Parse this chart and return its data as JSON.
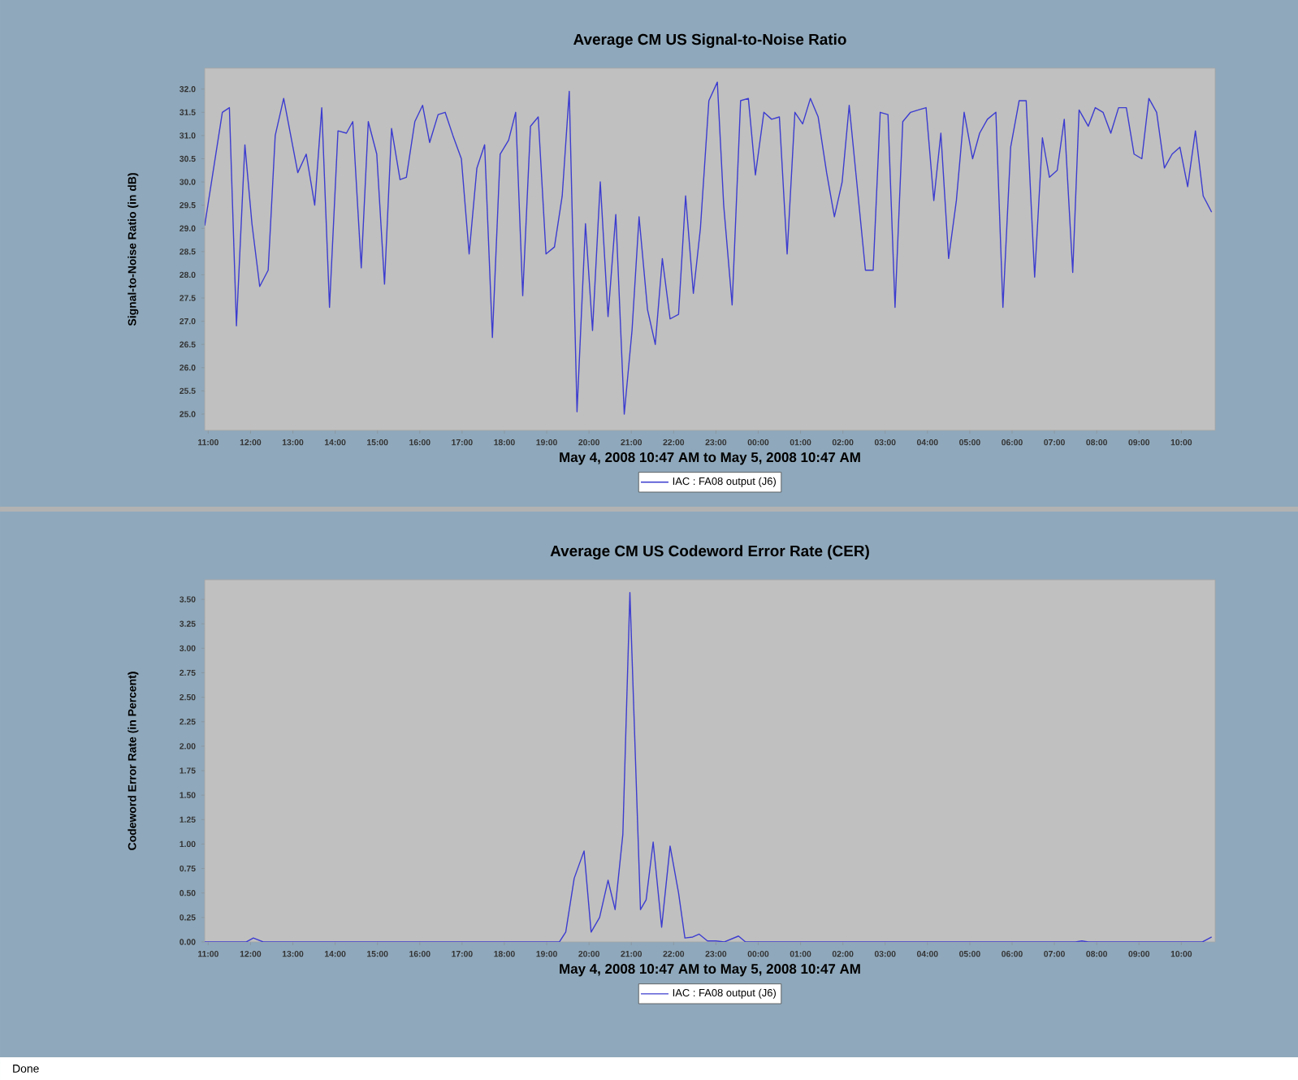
{
  "chart_data": [
    {
      "type": "line",
      "title": "Average CM US Signal-to-Noise Ratio",
      "xlabel": "May 4, 2008 10:47 AM to May 5, 2008 10:47 AM",
      "ylabel": "Signal-to-Noise Ratio (in dB)",
      "legend": "bottom",
      "line_style": "solid",
      "xlim": [
        "2008-05-04T10:55",
        "2008-05-05T10:48"
      ],
      "ylim": [
        24.65,
        32.45
      ],
      "xticks": [
        {
          "value": "2008-05-04T11:00",
          "label": "11:00"
        },
        {
          "value": "2008-05-04T12:00",
          "label": "12:00"
        },
        {
          "value": "2008-05-04T13:00",
          "label": "13:00"
        },
        {
          "value": "2008-05-04T14:00",
          "label": "14:00"
        },
        {
          "value": "2008-05-04T15:00",
          "label": "15:00"
        },
        {
          "value": "2008-05-04T16:00",
          "label": "16:00"
        },
        {
          "value": "2008-05-04T17:00",
          "label": "17:00"
        },
        {
          "value": "2008-05-04T18:00",
          "label": "18:00"
        },
        {
          "value": "2008-05-04T19:00",
          "label": "19:00"
        },
        {
          "value": "2008-05-04T20:00",
          "label": "20:00"
        },
        {
          "value": "2008-05-04T21:00",
          "label": "21:00"
        },
        {
          "value": "2008-05-04T22:00",
          "label": "22:00"
        },
        {
          "value": "2008-05-04T23:00",
          "label": "23:00"
        },
        {
          "value": "2008-05-05T00:00",
          "label": "00:00"
        },
        {
          "value": "2008-05-05T01:00",
          "label": "01:00"
        },
        {
          "value": "2008-05-05T02:00",
          "label": "02:00"
        },
        {
          "value": "2008-05-05T03:00",
          "label": "03:00"
        },
        {
          "value": "2008-05-05T04:00",
          "label": "04:00"
        },
        {
          "value": "2008-05-05T05:00",
          "label": "05:00"
        },
        {
          "value": "2008-05-05T06:00",
          "label": "06:00"
        },
        {
          "value": "2008-05-05T07:00",
          "label": "07:00"
        },
        {
          "value": "2008-05-05T08:00",
          "label": "08:00"
        },
        {
          "value": "2008-05-05T09:00",
          "label": "09:00"
        },
        {
          "value": "2008-05-05T10:00",
          "label": "10:00"
        }
      ],
      "yticks": [
        {
          "value": 25,
          "label": "25.0"
        },
        {
          "value": 25.5,
          "label": "25.5"
        },
        {
          "value": 26,
          "label": "26.0"
        },
        {
          "value": 26.5,
          "label": "26.5"
        },
        {
          "value": 27,
          "label": "27.0"
        },
        {
          "value": 27.5,
          "label": "27.5"
        },
        {
          "value": 28,
          "label": "28.0"
        },
        {
          "value": 28.5,
          "label": "28.5"
        },
        {
          "value": 29,
          "label": "29.0"
        },
        {
          "value": 29.5,
          "label": "29.5"
        },
        {
          "value": 30,
          "label": "30.0"
        },
        {
          "value": 30.5,
          "label": "30.5"
        },
        {
          "value": 31,
          "label": "31.0"
        },
        {
          "value": 31.5,
          "label": "31.5"
        },
        {
          "value": 32,
          "label": "32.0"
        }
      ],
      "series": [
        {
          "name": "IAC : FA08 output (J6)",
          "color": "#3c3cd0",
          "x": [
            "2008-05-04T10:55",
            "2008-05-04T11:20",
            "2008-05-04T11:30",
            "2008-05-04T11:40",
            "2008-05-04T11:52",
            "2008-05-04T12:02",
            "2008-05-04T12:13",
            "2008-05-04T12:25",
            "2008-05-04T12:35",
            "2008-05-04T12:47",
            "2008-05-04T12:57",
            "2008-05-04T13:07",
            "2008-05-04T13:19",
            "2008-05-04T13:31",
            "2008-05-04T13:41",
            "2008-05-04T13:52",
            "2008-05-04T14:04",
            "2008-05-04T14:16",
            "2008-05-04T14:25",
            "2008-05-04T14:37",
            "2008-05-04T14:47",
            "2008-05-04T14:59",
            "2008-05-04T15:10",
            "2008-05-04T15:20",
            "2008-05-04T15:32",
            "2008-05-04T15:41",
            "2008-05-04T15:53",
            "2008-05-04T16:04",
            "2008-05-04T16:14",
            "2008-05-04T16:26",
            "2008-05-04T16:36",
            "2008-05-04T16:47",
            "2008-05-04T16:59",
            "2008-05-04T17:10",
            "2008-05-04T17:21",
            "2008-05-04T17:32",
            "2008-05-04T17:43",
            "2008-05-04T17:54",
            "2008-05-04T18:06",
            "2008-05-04T18:16",
            "2008-05-04T18:26",
            "2008-05-04T18:37",
            "2008-05-04T18:48",
            "2008-05-04T18:59",
            "2008-05-04T19:11",
            "2008-05-04T19:22",
            "2008-05-04T19:32",
            "2008-05-04T19:43",
            "2008-05-04T19:55",
            "2008-05-04T20:05",
            "2008-05-04T20:16",
            "2008-05-04T20:27",
            "2008-05-04T20:38",
            "2008-05-04T20:50",
            "2008-05-04T21:01",
            "2008-05-04T21:11",
            "2008-05-04T21:23",
            "2008-05-04T21:34",
            "2008-05-04T21:44",
            "2008-05-04T21:55",
            "2008-05-04T22:07",
            "2008-05-04T22:17",
            "2008-05-04T22:28",
            "2008-05-04T22:38",
            "2008-05-04T22:50",
            "2008-05-04T23:02",
            "2008-05-04T23:11",
            "2008-05-04T23:23",
            "2008-05-04T23:35",
            "2008-05-04T23:46",
            "2008-05-04T23:56",
            "2008-05-05T00:08",
            "2008-05-05T00:19",
            "2008-05-05T00:30",
            "2008-05-05T00:41",
            "2008-05-05T00:52",
            "2008-05-05T01:03",
            "2008-05-05T01:14",
            "2008-05-05T01:25",
            "2008-05-05T01:37",
            "2008-05-05T01:48",
            "2008-05-05T01:59",
            "2008-05-05T02:09",
            "2008-05-05T02:21",
            "2008-05-05T02:32",
            "2008-05-05T02:43",
            "2008-05-05T02:53",
            "2008-05-05T03:04",
            "2008-05-05T03:14",
            "2008-05-05T03:25",
            "2008-05-05T03:36",
            "2008-05-05T03:47",
            "2008-05-05T03:58",
            "2008-05-05T04:09",
            "2008-05-05T04:19",
            "2008-05-05T04:30",
            "2008-05-05T04:41",
            "2008-05-05T04:52",
            "2008-05-05T05:04",
            "2008-05-05T05:14",
            "2008-05-05T05:25",
            "2008-05-05T05:37",
            "2008-05-05T05:47",
            "2008-05-05T05:58",
            "2008-05-05T06:10",
            "2008-05-05T06:20",
            "2008-05-05T06:32",
            "2008-05-05T06:43",
            "2008-05-05T06:53",
            "2008-05-05T07:04",
            "2008-05-05T07:14",
            "2008-05-05T07:26",
            "2008-05-05T07:35",
            "2008-05-05T07:48",
            "2008-05-05T07:58",
            "2008-05-05T08:09",
            "2008-05-05T08:20",
            "2008-05-05T08:31",
            "2008-05-05T08:42",
            "2008-05-05T08:53",
            "2008-05-05T09:04",
            "2008-05-05T09:14",
            "2008-05-05T09:25",
            "2008-05-05T09:36",
            "2008-05-05T09:47",
            "2008-05-05T09:58",
            "2008-05-05T10:09",
            "2008-05-05T10:20",
            "2008-05-05T10:31",
            "2008-05-05T10:43"
          ],
          "values": [
            29.06,
            31.5,
            31.6,
            26.9,
            30.8,
            29.1,
            27.75,
            28.1,
            31.0,
            31.8,
            31.0,
            30.2,
            30.6,
            29.5,
            31.6,
            27.3,
            31.1,
            31.05,
            31.3,
            28.15,
            31.3,
            30.6,
            27.8,
            31.15,
            30.05,
            30.1,
            31.3,
            31.65,
            30.85,
            31.45,
            31.5,
            31.0,
            30.5,
            28.45,
            30.3,
            30.8,
            26.65,
            30.6,
            30.9,
            31.5,
            27.55,
            31.2,
            31.4,
            28.45,
            28.6,
            29.7,
            31.95,
            25.05,
            29.1,
            26.8,
            30.0,
            27.1,
            29.3,
            25.0,
            26.8,
            29.25,
            27.25,
            26.5,
            28.35,
            27.05,
            27.15,
            29.7,
            27.6,
            29.0,
            31.75,
            32.15,
            29.5,
            27.35,
            31.75,
            31.8,
            30.15,
            31.5,
            31.35,
            31.4,
            28.45,
            31.5,
            31.25,
            31.8,
            31.4,
            30.2,
            29.25,
            30.0,
            31.65,
            29.8,
            28.1,
            28.1,
            31.5,
            31.45,
            27.3,
            31.3,
            31.5,
            31.55,
            31.6,
            29.6,
            31.05,
            28.35,
            29.6,
            31.5,
            30.5,
            31.05,
            31.35,
            31.5,
            27.3,
            30.75,
            31.75,
            31.75,
            27.95,
            30.95,
            30.1,
            30.25,
            31.35,
            28.05,
            31.55,
            31.2,
            31.6,
            31.5,
            31.05,
            31.6,
            31.6,
            30.6,
            30.5,
            31.8,
            31.5,
            30.3,
            30.6,
            30.75,
            29.9,
            31.1,
            29.7,
            29.35
          ]
        }
      ]
    },
    {
      "type": "line",
      "title": "Average CM US Codeword Error Rate (CER)",
      "xlabel": "May 4, 2008 10:47 AM to May 5, 2008 10:47 AM",
      "ylabel": "Codeword Error Rate (in Percent)",
      "legend": "bottom",
      "line_style": "solid",
      "annotations": [
        "Done"
      ],
      "xlim": [
        "2008-05-04T10:55",
        "2008-05-05T10:48"
      ],
      "ylim": [
        0,
        3.7
      ],
      "xticks": [
        {
          "value": "2008-05-04T11:00",
          "label": "11:00"
        },
        {
          "value": "2008-05-04T12:00",
          "label": "12:00"
        },
        {
          "value": "2008-05-04T13:00",
          "label": "13:00"
        },
        {
          "value": "2008-05-04T14:00",
          "label": "14:00"
        },
        {
          "value": "2008-05-04T15:00",
          "label": "15:00"
        },
        {
          "value": "2008-05-04T16:00",
          "label": "16:00"
        },
        {
          "value": "2008-05-04T17:00",
          "label": "17:00"
        },
        {
          "value": "2008-05-04T18:00",
          "label": "18:00"
        },
        {
          "value": "2008-05-04T19:00",
          "label": "19:00"
        },
        {
          "value": "2008-05-04T20:00",
          "label": "20:00"
        },
        {
          "value": "2008-05-04T21:00",
          "label": "21:00"
        },
        {
          "value": "2008-05-04T22:00",
          "label": "22:00"
        },
        {
          "value": "2008-05-04T23:00",
          "label": "23:00"
        },
        {
          "value": "2008-05-05T00:00",
          "label": "00:00"
        },
        {
          "value": "2008-05-05T01:00",
          "label": "01:00"
        },
        {
          "value": "2008-05-05T02:00",
          "label": "02:00"
        },
        {
          "value": "2008-05-05T03:00",
          "label": "03:00"
        },
        {
          "value": "2008-05-05T04:00",
          "label": "04:00"
        },
        {
          "value": "2008-05-05T05:00",
          "label": "05:00"
        },
        {
          "value": "2008-05-05T06:00",
          "label": "06:00"
        },
        {
          "value": "2008-05-05T07:00",
          "label": "07:00"
        },
        {
          "value": "2008-05-05T08:00",
          "label": "08:00"
        },
        {
          "value": "2008-05-05T09:00",
          "label": "09:00"
        },
        {
          "value": "2008-05-05T10:00",
          "label": "10:00"
        }
      ],
      "yticks": [
        {
          "value": 0,
          "label": "0.00"
        },
        {
          "value": 0.25,
          "label": "0.25"
        },
        {
          "value": 0.5,
          "label": "0.50"
        },
        {
          "value": 0.75,
          "label": "0.75"
        },
        {
          "value": 1,
          "label": "1.00"
        },
        {
          "value": 1.25,
          "label": "1.25"
        },
        {
          "value": 1.5,
          "label": "1.50"
        },
        {
          "value": 1.75,
          "label": "1.75"
        },
        {
          "value": 2,
          "label": "2.00"
        },
        {
          "value": 2.25,
          "label": "2.25"
        },
        {
          "value": 2.5,
          "label": "2.50"
        },
        {
          "value": 2.75,
          "label": "2.75"
        },
        {
          "value": 3,
          "label": "3.00"
        },
        {
          "value": 3.25,
          "label": "3.25"
        },
        {
          "value": 3.5,
          "label": "3.50"
        }
      ],
      "series": [
        {
          "name": "IAC : FA08 output (J6)",
          "color": "#3c3cd0",
          "x": [
            "2008-05-04T10:55",
            "2008-05-04T11:54",
            "2008-05-04T12:04",
            "2008-05-04T12:18",
            "2008-05-04T19:18",
            "2008-05-04T19:27",
            "2008-05-04T19:39",
            "2008-05-04T19:53",
            "2008-05-04T20:03",
            "2008-05-04T20:15",
            "2008-05-04T20:27",
            "2008-05-04T20:37",
            "2008-05-04T20:48",
            "2008-05-04T20:58",
            "2008-05-04T21:13",
            "2008-05-04T21:21",
            "2008-05-04T21:31",
            "2008-05-04T21:43",
            "2008-05-04T21:55",
            "2008-05-04T22:07",
            "2008-05-04T22:16",
            "2008-05-04T22:27",
            "2008-05-04T22:36",
            "2008-05-04T22:48",
            "2008-05-04T23:00",
            "2008-05-04T23:12",
            "2008-05-04T23:32",
            "2008-05-04T23:42",
            "2008-05-05T07:30",
            "2008-05-05T07:39",
            "2008-05-05T07:48",
            "2008-05-05T10:30",
            "2008-05-05T10:43"
          ],
          "values": [
            0,
            0,
            0.04,
            0,
            0,
            0.1,
            0.65,
            0.93,
            0.1,
            0.25,
            0.63,
            0.33,
            1.1,
            3.57,
            0.33,
            0.43,
            1.02,
            0.15,
            0.98,
            0.5,
            0.04,
            0.05,
            0.08,
            0.01,
            0.01,
            0,
            0.06,
            0,
            0,
            0.01,
            0,
            0,
            0.05
          ]
        }
      ]
    }
  ]
}
